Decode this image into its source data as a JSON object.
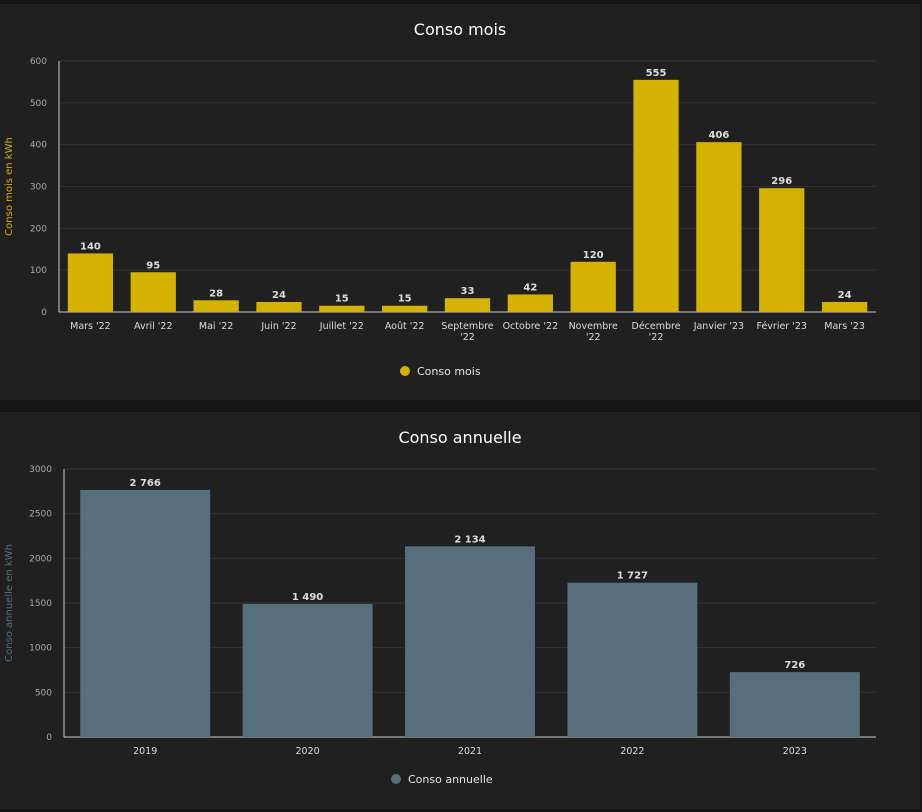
{
  "chart_data": [
    {
      "type": "bar",
      "title": "Conso mois",
      "ylabel": "Conso mois en kWh",
      "xlabel": "",
      "ylim": [
        0,
        600
      ],
      "yticks": [
        "0",
        "100",
        "200",
        "300",
        "400",
        "500",
        "600"
      ],
      "categories": [
        [
          "Mars '22"
        ],
        [
          "Avril '22"
        ],
        [
          "Mai '22"
        ],
        [
          "Juin '22"
        ],
        [
          "Juillet '22"
        ],
        [
          "Août '22"
        ],
        [
          "Septembre",
          "'22"
        ],
        [
          "Octobre '22"
        ],
        [
          "Novembre",
          "'22"
        ],
        [
          "Décembre",
          "'22"
        ],
        [
          "Janvier '23"
        ],
        [
          "Février '23"
        ],
        [
          "Mars '23"
        ]
      ],
      "series": [
        {
          "name": "Conso mois",
          "color": "#d4b200",
          "values": [
            140,
            95,
            28,
            24,
            15,
            15,
            33,
            42,
            120,
            555,
            406,
            296,
            24
          ],
          "labels": [
            "140",
            "95",
            "28",
            "24",
            "15",
            "15",
            "33",
            "42",
            "120",
            "555",
            "406",
            "296",
            "24"
          ]
        }
      ],
      "legend": "bottom-center",
      "grid": true,
      "ylabel_color": "#d4b200"
    },
    {
      "type": "bar",
      "title": "Conso annuelle",
      "ylabel": "Conso annuelle en kWh",
      "xlabel": "",
      "ylim": [
        0,
        3000
      ],
      "yticks": [
        "0",
        "500",
        "1000",
        "1500",
        "2000",
        "2500",
        "3000"
      ],
      "categories": [
        [
          "2019"
        ],
        [
          "2020"
        ],
        [
          "2021"
        ],
        [
          "2022"
        ],
        [
          "2023"
        ]
      ],
      "series": [
        {
          "name": "Conso annuelle",
          "color": "#566f7b",
          "values": [
            2766,
            1490,
            2134,
            1727,
            726
          ],
          "labels": [
            "2 766",
            "1 490",
            "2 134",
            "1 727",
            "726"
          ]
        }
      ],
      "legend": "bottom-center",
      "grid": true,
      "ylabel_color": "#566f7b"
    }
  ]
}
